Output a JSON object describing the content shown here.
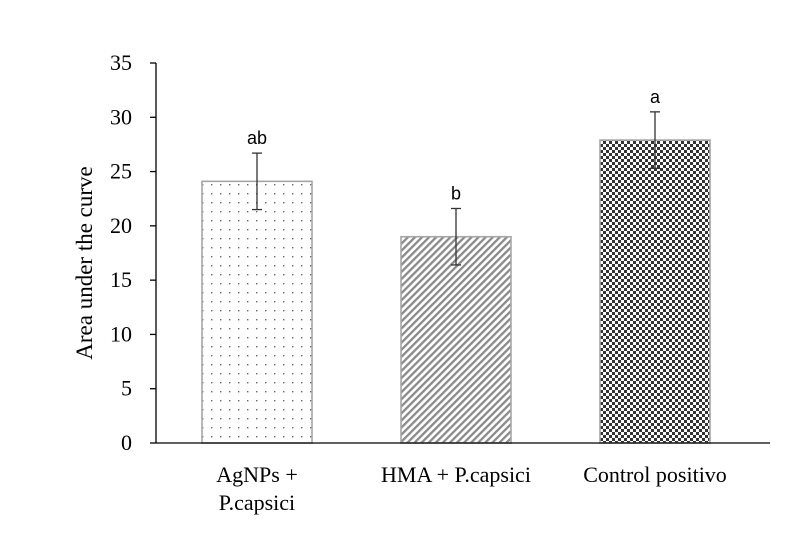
{
  "chart_data": {
    "type": "bar",
    "categories": [
      [
        "AgNPs +",
        "P.capsici"
      ],
      [
        "HMA + P.capsici"
      ],
      [
        "Control positivo"
      ]
    ],
    "values": [
      24.1,
      19.0,
      27.9
    ],
    "errors": [
      2.6,
      2.6,
      2.6
    ],
    "significance": [
      "ab",
      "b",
      "a"
    ],
    "patterns": [
      "dots",
      "diagonal",
      "checker"
    ],
    "ylabel": "Area under the curve",
    "ylim": [
      0,
      35
    ],
    "yticks": [
      "0",
      "5",
      "10",
      "15",
      "20",
      "25",
      "30",
      "35"
    ],
    "grid": false,
    "colors": {
      "bar_stroke": "#a6a6a6",
      "pattern": "#555555",
      "axis": "#000000"
    }
  }
}
